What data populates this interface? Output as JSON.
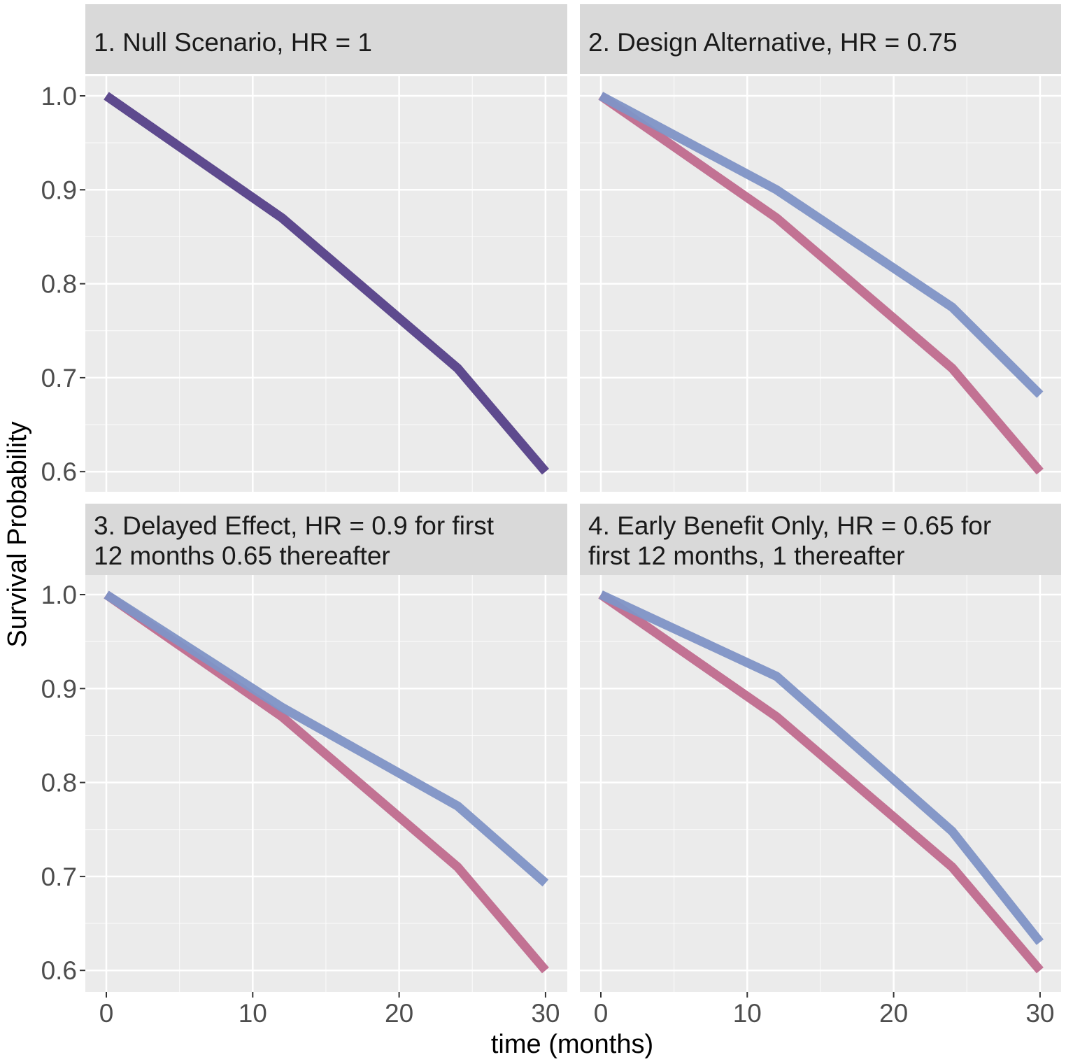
{
  "chart_data": {
    "type": "line",
    "xlabel": "time (months)",
    "ylabel": "Survival Probability",
    "xlim": [
      0,
      30
    ],
    "ylim": [
      0.6,
      1.0
    ],
    "x_ticks": [
      0,
      10,
      20,
      30
    ],
    "x_tick_labels": [
      "0",
      "10",
      "20",
      "30"
    ],
    "y_ticks": [
      0.6,
      0.7,
      0.8,
      0.9,
      1.0
    ],
    "y_tick_labels": [
      "0.6",
      "0.7",
      "0.8",
      "0.9",
      "1.0"
    ],
    "grid": true,
    "colors": {
      "control": "#c06c8e",
      "treatment": "#7f93c6",
      "overlap": "#5e4a8e",
      "panel_bg": "#ebebeb",
      "strip_bg": "#d9d9d9",
      "grid": "#ffffff"
    },
    "panels": [
      {
        "title": [
          "1. Null Scenario, HR = 1"
        ],
        "series": [
          {
            "role": "control",
            "x": [
              0,
              12,
              24,
              30
            ],
            "y": [
              1.0,
              0.87,
              0.71,
              0.6
            ]
          },
          {
            "role": "treatment",
            "x": [
              0,
              12,
              24,
              30
            ],
            "y": [
              1.0,
              0.87,
              0.71,
              0.6
            ]
          }
        ]
      },
      {
        "title": [
          "2. Design Alternative, HR = 0.75"
        ],
        "series": [
          {
            "role": "control",
            "x": [
              0,
              12,
              24,
              30
            ],
            "y": [
              1.0,
              0.87,
              0.71,
              0.6
            ]
          },
          {
            "role": "treatment",
            "x": [
              0,
              12,
              24,
              30
            ],
            "y": [
              1.0,
              0.9,
              0.775,
              0.682
            ]
          }
        ]
      },
      {
        "title": [
          "3. Delayed Effect, HR = 0.9 for first",
          "12 months 0.65 thereafter"
        ],
        "series": [
          {
            "role": "control",
            "x": [
              0,
              12,
              24,
              30
            ],
            "y": [
              1.0,
              0.87,
              0.71,
              0.6
            ]
          },
          {
            "role": "treatment",
            "x": [
              0,
              12,
              24,
              30
            ],
            "y": [
              1.0,
              0.88,
              0.775,
              0.693
            ]
          }
        ]
      },
      {
        "title": [
          "4. Early Benefit Only, HR = 0.65 for",
          "first 12 months, 1 thereafter"
        ],
        "series": [
          {
            "role": "control",
            "x": [
              0,
              12,
              24,
              30
            ],
            "y": [
              1.0,
              0.87,
              0.71,
              0.6
            ]
          },
          {
            "role": "treatment",
            "x": [
              0,
              12,
              24,
              30
            ],
            "y": [
              1.0,
              0.913,
              0.748,
              0.63
            ]
          }
        ]
      }
    ]
  }
}
